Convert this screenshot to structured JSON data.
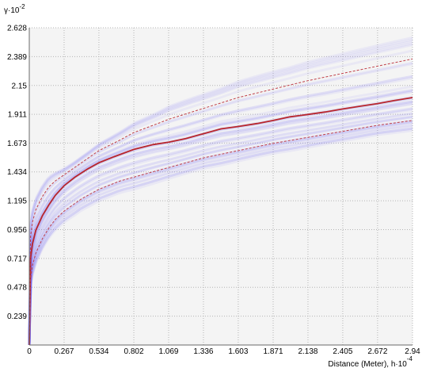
{
  "chart_data": {
    "type": "line",
    "title": "",
    "y_axis_label": "γ·10",
    "y_axis_exponent": "-2",
    "x_axis_label": "Distance (Meter), h·10",
    "x_axis_exponent": "-4",
    "x_ticks": [
      "0",
      "0.267",
      "0.534",
      "0.802",
      "1.069",
      "1.336",
      "1.603",
      "1.871",
      "2.138",
      "2.405",
      "2.672",
      "2.94"
    ],
    "y_ticks": [
      "2.628",
      "2.389",
      "2.15",
      "1.911",
      "1.673",
      "1.434",
      "1.195",
      "0.956",
      "0.717",
      "0.478",
      "0.239"
    ],
    "xlim": [
      0,
      2.94
    ],
    "ylim": [
      0,
      2.628
    ],
    "grid": true,
    "colors": {
      "main": "#b8262c",
      "envelope": "#c0404a",
      "cloud": "#7b6ff0",
      "grid": "#b4b4b4",
      "plot_background": "#f4f4f4"
    },
    "series": [
      {
        "role": "main",
        "x": [
          0,
          0.01,
          0.025,
          0.05,
          0.1,
          0.15,
          0.2,
          0.267,
          0.35,
          0.45,
          0.534,
          0.65,
          0.802,
          0.95,
          1.069,
          1.2,
          1.336,
          1.47,
          1.603,
          1.75,
          1.871,
          2.0,
          2.138,
          2.27,
          2.405,
          2.55,
          2.672,
          2.8,
          2.94
        ],
        "y": [
          0.0,
          0.72,
          0.84,
          0.95,
          1.07,
          1.16,
          1.24,
          1.32,
          1.39,
          1.46,
          1.51,
          1.56,
          1.62,
          1.66,
          1.68,
          1.71,
          1.75,
          1.79,
          1.81,
          1.835,
          1.86,
          1.89,
          1.91,
          1.93,
          1.955,
          1.98,
          2.0,
          2.025,
          2.05
        ]
      },
      {
        "role": "upper_envelope",
        "x": [
          0,
          0.01,
          0.025,
          0.05,
          0.1,
          0.15,
          0.2,
          0.267,
          0.4,
          0.534,
          0.7,
          0.802,
          1.0,
          1.069,
          1.336,
          1.603,
          1.871,
          2.138,
          2.405,
          2.672,
          2.94
        ],
        "y": [
          0.0,
          0.9,
          1.02,
          1.12,
          1.23,
          1.31,
          1.36,
          1.41,
          1.51,
          1.61,
          1.7,
          1.76,
          1.84,
          1.87,
          1.96,
          2.05,
          2.12,
          2.19,
          2.25,
          2.31,
          2.37
        ]
      },
      {
        "role": "lower_envelope",
        "x": [
          0,
          0.01,
          0.025,
          0.05,
          0.1,
          0.15,
          0.2,
          0.267,
          0.4,
          0.534,
          0.7,
          0.802,
          1.0,
          1.069,
          1.336,
          1.603,
          1.871,
          2.138,
          2.405,
          2.672,
          2.94
        ],
        "y": [
          0.0,
          0.55,
          0.66,
          0.76,
          0.88,
          0.97,
          1.04,
          1.11,
          1.21,
          1.29,
          1.36,
          1.39,
          1.45,
          1.47,
          1.55,
          1.61,
          1.67,
          1.72,
          1.77,
          1.82,
          1.86
        ]
      }
    ]
  }
}
